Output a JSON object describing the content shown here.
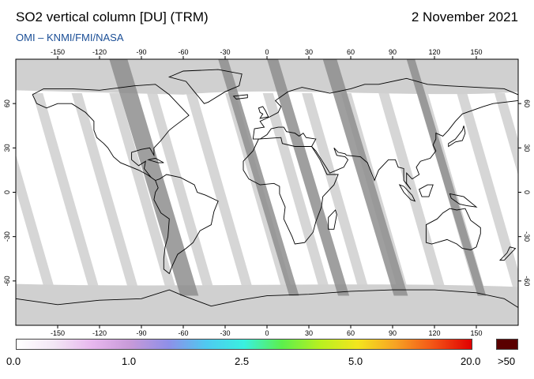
{
  "header": {
    "title": "SO2 vertical column [DU] (TRM)",
    "date": "2 November 2021",
    "subtitle": "OMI  –  KNMI/FMI/NASA"
  },
  "map": {
    "lon_ticks": [
      "-150",
      "-120",
      "-90",
      "-60",
      "-30",
      "0",
      "30",
      "60",
      "90",
      "120",
      "150"
    ],
    "lat_ticks": [
      "60",
      "30",
      "0",
      "-30",
      "-60"
    ],
    "colors": {
      "no_data": "#d0d0d0",
      "land_no_data": "#8e8e8e",
      "swath_gap": "#d6d6d6",
      "coast": "#000000"
    }
  },
  "colorbar": {
    "labels": [
      "0.0",
      "1.0",
      "2.5",
      "5.0",
      "20.0",
      ">50"
    ],
    "gradient": [
      "#ffffff",
      "#f3e6f5",
      "#e7b7ee",
      "#c79ad8",
      "#8f8fe8",
      "#4fc9f0",
      "#39f0e0",
      "#5cf04c",
      "#b8f020",
      "#f3e51e",
      "#f7a224",
      "#f35316",
      "#e00000"
    ],
    "overflow_color": "#5a0000"
  }
}
